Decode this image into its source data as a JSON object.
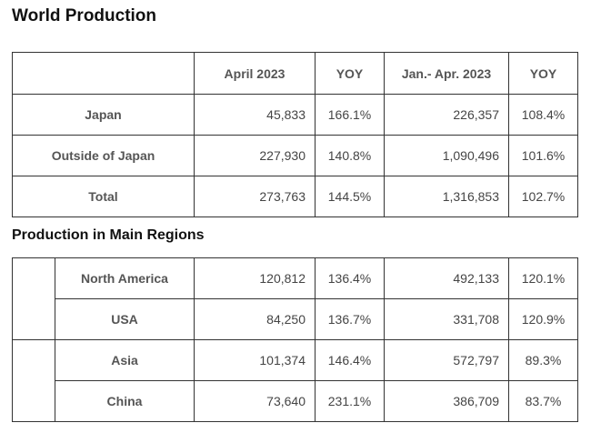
{
  "world": {
    "title": "World Production",
    "headers": [
      "",
      "April 2023",
      "YOY",
      "Jan.- Apr. 2023",
      "YOY"
    ],
    "rows": [
      {
        "label": "Japan",
        "april": "45,833",
        "yoy1": "166.1%",
        "ytd": "226,357",
        "yoy2": "108.4%"
      },
      {
        "label": "Outside of Japan",
        "april": "227,930",
        "yoy1": "140.8%",
        "ytd": "1,090,496",
        "yoy2": "101.6%"
      },
      {
        "label": "Total",
        "april": "273,763",
        "yoy1": "144.5%",
        "ytd": "1,316,853",
        "yoy2": "102.7%"
      }
    ]
  },
  "regions": {
    "title": "Production in Main Regions",
    "rows": [
      {
        "label": "North America",
        "april": "120,812",
        "yoy1": "136.4%",
        "ytd": "492,133",
        "yoy2": "120.1%"
      },
      {
        "label": "USA",
        "april": "84,250",
        "yoy1": "136.7%",
        "ytd": "331,708",
        "yoy2": "120.9%"
      },
      {
        "label": "Asia",
        "april": "101,374",
        "yoy1": "146.4%",
        "ytd": "572,797",
        "yoy2": "89.3%"
      },
      {
        "label": "China",
        "april": "73,640",
        "yoy1": "231.1%",
        "ytd": "386,709",
        "yoy2": "83.7%"
      }
    ]
  }
}
